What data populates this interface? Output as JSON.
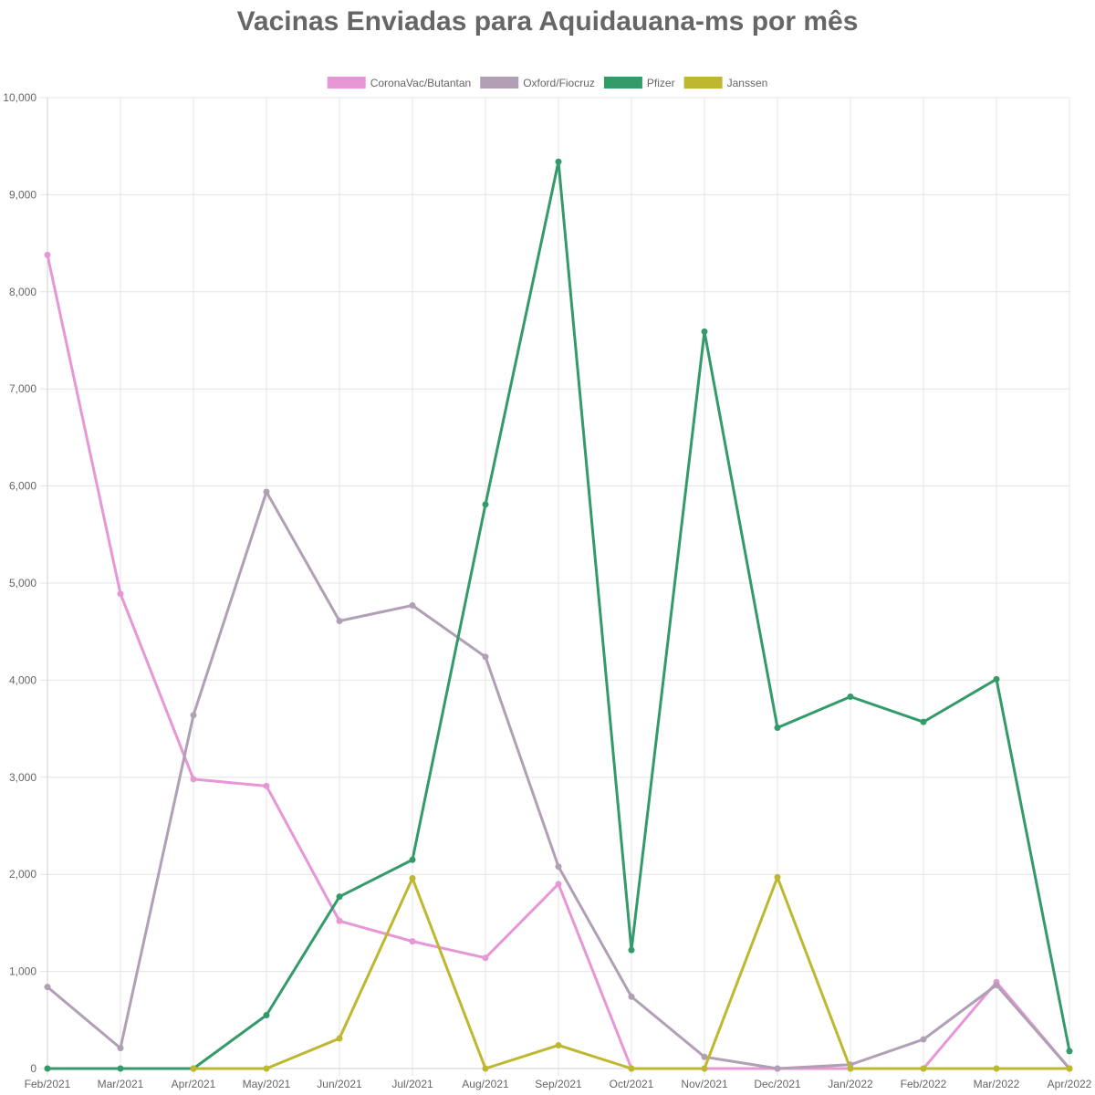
{
  "chart_data": {
    "type": "line",
    "title": "Vacinas Enviadas para Aquidauana-ms por mês",
    "xlabel": "",
    "ylabel": "",
    "categories": [
      "Feb/2021",
      "Mar/2021",
      "Apr/2021",
      "May/2021",
      "Jun/2021",
      "Jul/2021",
      "Aug/2021",
      "Sep/2021",
      "Oct/2021",
      "Nov/2021",
      "Dec/2021",
      "Jan/2022",
      "Feb/2022",
      "Mar/2022",
      "Apr/2022"
    ],
    "ylim": [
      0,
      10000
    ],
    "yticks": [
      "0",
      "1,000",
      "2,000",
      "3,000",
      "4,000",
      "5,000",
      "6,000",
      "7,000",
      "8,000",
      "9,000",
      "10,000"
    ],
    "grid": true,
    "legend_position": "top-center",
    "series": [
      {
        "name": "CoronaVac/Butantan",
        "color": "#e796d6",
        "values": [
          8380,
          4890,
          2980,
          2910,
          1520,
          1310,
          1140,
          1900,
          0,
          0,
          0,
          0,
          0,
          890,
          0
        ]
      },
      {
        "name": "Oxford/Fiocruz",
        "color": "#b09fb5",
        "values": [
          840,
          210,
          3640,
          5940,
          4610,
          4770,
          4240,
          2080,
          740,
          120,
          0,
          40,
          300,
          860,
          0
        ]
      },
      {
        "name": "Pfizer",
        "color": "#339a6a",
        "values": [
          0,
          0,
          0,
          550,
          1770,
          2150,
          5810,
          9340,
          1220,
          7590,
          3510,
          3830,
          3570,
          4010,
          180
        ]
      },
      {
        "name": "Janssen",
        "color": "#bdb82f",
        "values": [
          null,
          null,
          0,
          0,
          310,
          1960,
          0,
          240,
          0,
          0,
          1970,
          0,
          0,
          0,
          0
        ]
      }
    ]
  }
}
